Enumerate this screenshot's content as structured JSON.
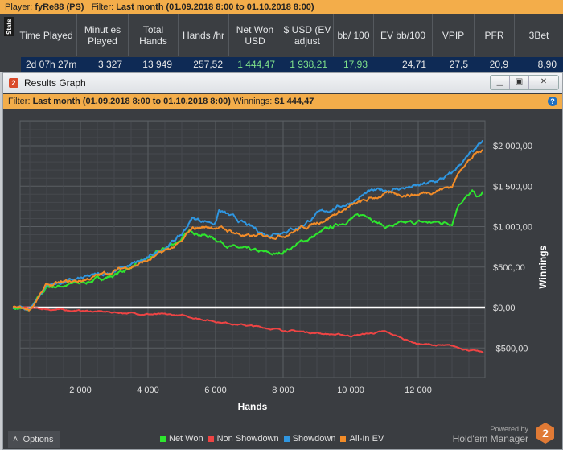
{
  "player_bar": {
    "player_label": "Player:",
    "player": "fyRe88 (PS)",
    "filter_label": "Filter:",
    "filter": "Last month (01.09.2018 8:00 to 01.10.2018 8:00)"
  },
  "stats": {
    "tab": "Stats",
    "headers": [
      "Time Played",
      "Minut es Played",
      "Total Hands",
      "Hands /hr",
      "Net Won USD",
      "$ USD (EV adjust",
      "bb/ 100",
      "EV bb/100",
      "VPIP",
      "PFR",
      "3Bet"
    ],
    "row": [
      "2d 07h 27m",
      "3 327",
      "13 949",
      "257,52",
      "1 444,47",
      "1 938,21",
      "17,93",
      "24,71",
      "27,5",
      "20,9",
      "8,90"
    ]
  },
  "window": {
    "title": "Results Graph",
    "filter_label": "Filter:",
    "filter": "Last month (01.09.2018 8:00 to 01.10.2018 8:00)",
    "winnings_label": "Winnings:",
    "winnings": "$1 444,47"
  },
  "chart_data": {
    "type": "line",
    "xlabel": "Hands",
    "ylabel": "Winnings",
    "xlim": [
      0,
      13949
    ],
    "ylim": [
      -670,
      2670
    ],
    "x_ticks": [
      2000,
      4000,
      6000,
      8000,
      10000,
      12000
    ],
    "x_tick_labels": [
      "2 000",
      "4 000",
      "6 000",
      "8 000",
      "10 000",
      "12 000"
    ],
    "y_ticks": [
      -500,
      0,
      500,
      1000,
      1500,
      2000
    ],
    "y_tick_labels": [
      "-$500,00",
      "$0,00",
      "$500,00",
      "$1 000,00",
      "$1 500,00",
      "$2 000,00"
    ],
    "grid": true,
    "legend_placement": "bottom",
    "series": [
      {
        "name": "Net Won",
        "color": "#2ee62e",
        "points": [
          [
            0,
            0
          ],
          [
            500,
            -40
          ],
          [
            1000,
            250
          ],
          [
            2000,
            300
          ],
          [
            3000,
            400
          ],
          [
            4000,
            600
          ],
          [
            5000,
            850
          ],
          [
            5300,
            950
          ],
          [
            6000,
            850
          ],
          [
            6500,
            750
          ],
          [
            7000,
            700
          ],
          [
            7800,
            650
          ],
          [
            8500,
            800
          ],
          [
            9000,
            900
          ],
          [
            10000,
            1100
          ],
          [
            10500,
            1150
          ],
          [
            11000,
            1000
          ],
          [
            12000,
            1050
          ],
          [
            13000,
            1050
          ],
          [
            13200,
            1300
          ],
          [
            13600,
            1420
          ],
          [
            13800,
            1350
          ],
          [
            13949,
            1444
          ]
        ]
      },
      {
        "name": "Non Showdown",
        "color": "#ee4444",
        "points": [
          [
            0,
            0
          ],
          [
            1000,
            -20
          ],
          [
            3000,
            -60
          ],
          [
            5000,
            -100
          ],
          [
            6000,
            -170
          ],
          [
            8000,
            -280
          ],
          [
            10000,
            -350
          ],
          [
            11000,
            -300
          ],
          [
            12000,
            -450
          ],
          [
            13000,
            -480
          ],
          [
            13949,
            -560
          ]
        ]
      },
      {
        "name": "Showdown",
        "color": "#2f96e0",
        "points": [
          [
            0,
            0
          ],
          [
            500,
            -20
          ],
          [
            1000,
            280
          ],
          [
            2000,
            350
          ],
          [
            3000,
            450
          ],
          [
            4000,
            600
          ],
          [
            5000,
            900
          ],
          [
            5300,
            1100
          ],
          [
            6000,
            1050
          ],
          [
            6100,
            1200
          ],
          [
            7000,
            1000
          ],
          [
            7500,
            900
          ],
          [
            8000,
            950
          ],
          [
            8500,
            1000
          ],
          [
            9000,
            1150
          ],
          [
            10000,
            1300
          ],
          [
            10500,
            1420
          ],
          [
            11000,
            1450
          ],
          [
            12000,
            1500
          ],
          [
            12500,
            1550
          ],
          [
            13000,
            1650
          ],
          [
            13300,
            1800
          ],
          [
            13700,
            1950
          ],
          [
            13949,
            2050
          ]
        ]
      },
      {
        "name": "All-In EV",
        "color": "#f28c28",
        "points": [
          [
            0,
            0
          ],
          [
            500,
            -20
          ],
          [
            1000,
            270
          ],
          [
            2000,
            330
          ],
          [
            3000,
            450
          ],
          [
            4000,
            580
          ],
          [
            5000,
            800
          ],
          [
            5300,
            980
          ],
          [
            6000,
            1000
          ],
          [
            7000,
            870
          ],
          [
            8000,
            900
          ],
          [
            9000,
            1050
          ],
          [
            10000,
            1250
          ],
          [
            11000,
            1400
          ],
          [
            12000,
            1400
          ],
          [
            13000,
            1500
          ],
          [
            13300,
            1750
          ],
          [
            13700,
            1900
          ],
          [
            13949,
            1938
          ]
        ]
      }
    ]
  },
  "footer": {
    "options": "Options",
    "options_icon": "chevron-up-icon",
    "powered_by": "Powered by",
    "brand": "Hold'em Manager",
    "brand_number": "2"
  }
}
